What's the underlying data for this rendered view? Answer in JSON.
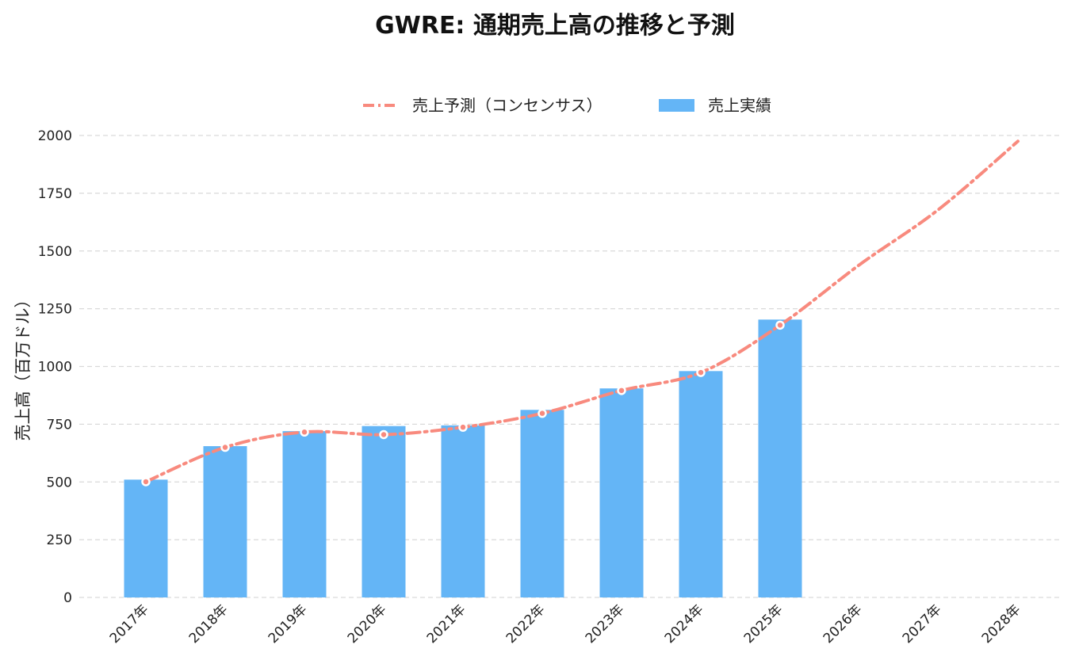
{
  "chart_data": {
    "type": "bar",
    "title": "GWRE: 通期売上高の推移と予測",
    "xlabel": "",
    "ylabel": "売上高（百万ドル）",
    "categories": [
      "2017年",
      "2018年",
      "2019年",
      "2020年",
      "2021年",
      "2022年",
      "2023年",
      "2024年",
      "2025年",
      "2026年",
      "2027年",
      "2028年"
    ],
    "ylim": [
      0,
      2000
    ],
    "yticks": [
      0,
      250,
      500,
      750,
      1000,
      1250,
      1500,
      1750,
      2000
    ],
    "grid": true,
    "legend_position": "top-center",
    "series": [
      {
        "name": "売上予測（コンセンサス）",
        "type": "line",
        "style": "dash-dot",
        "color": "#f88a7e",
        "values": [
          501,
          650,
          716,
          705,
          737,
          797,
          896,
          974,
          1179,
          1440,
          1680,
          1975
        ]
      },
      {
        "name": "売上実績",
        "type": "bar",
        "color": "#64b5f6",
        "values": [
          510,
          655,
          720,
          742,
          745,
          812,
          905,
          980,
          1203,
          null,
          null,
          null
        ]
      }
    ]
  }
}
